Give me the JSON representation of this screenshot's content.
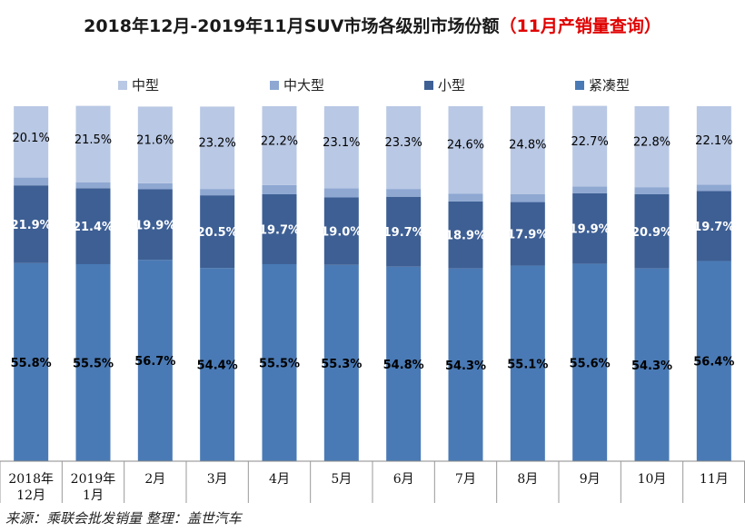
{
  "chart_data": {
    "type": "bar",
    "stacked": true,
    "percent_stacked": true,
    "title": "2018年12月-2019年11月SUV市场各级别市场份额",
    "subtitle": "（11月产销量查询）",
    "categories": [
      "2018年\n12月",
      "2019年\n1月",
      "2月",
      "3月",
      "4月",
      "5月",
      "6月",
      "7月",
      "8月",
      "9月",
      "10月",
      "11月"
    ],
    "series": [
      {
        "name": "紧凑型",
        "color": "#4a7ab5",
        "label_color": "#000000",
        "values": [
          55.8,
          55.5,
          56.7,
          54.4,
          55.5,
          55.3,
          54.8,
          54.3,
          55.1,
          55.6,
          54.3,
          56.4
        ]
      },
      {
        "name": "小型",
        "color": "#3d5f94",
        "label_color": "#ffffff",
        "values": [
          21.9,
          21.4,
          19.9,
          20.5,
          19.7,
          19.0,
          19.7,
          18.9,
          17.9,
          19.9,
          20.9,
          19.7
        ]
      },
      {
        "name": "中大型",
        "color": "#8ea8d2",
        "label_color": "#000000",
        "values": [
          2.2,
          1.7,
          1.7,
          1.8,
          2.6,
          2.6,
          2.2,
          2.2,
          2.2,
          1.9,
          2.0,
          1.8
        ]
      },
      {
        "name": "中型",
        "color": "#b9c8e4",
        "label_color": "#000000",
        "values": [
          20.1,
          21.5,
          21.6,
          23.2,
          22.2,
          23.1,
          23.3,
          24.6,
          24.8,
          22.7,
          22.8,
          22.1
        ]
      }
    ],
    "legend_order": [
      "中型",
      "中大型",
      "小型",
      "紧凑型"
    ],
    "legend_position": "top",
    "ylim": [
      0,
      100
    ],
    "value_suffix": "%",
    "grid": false
  },
  "footer": "来源：乘联会批发销量  整理：盖世汽车"
}
